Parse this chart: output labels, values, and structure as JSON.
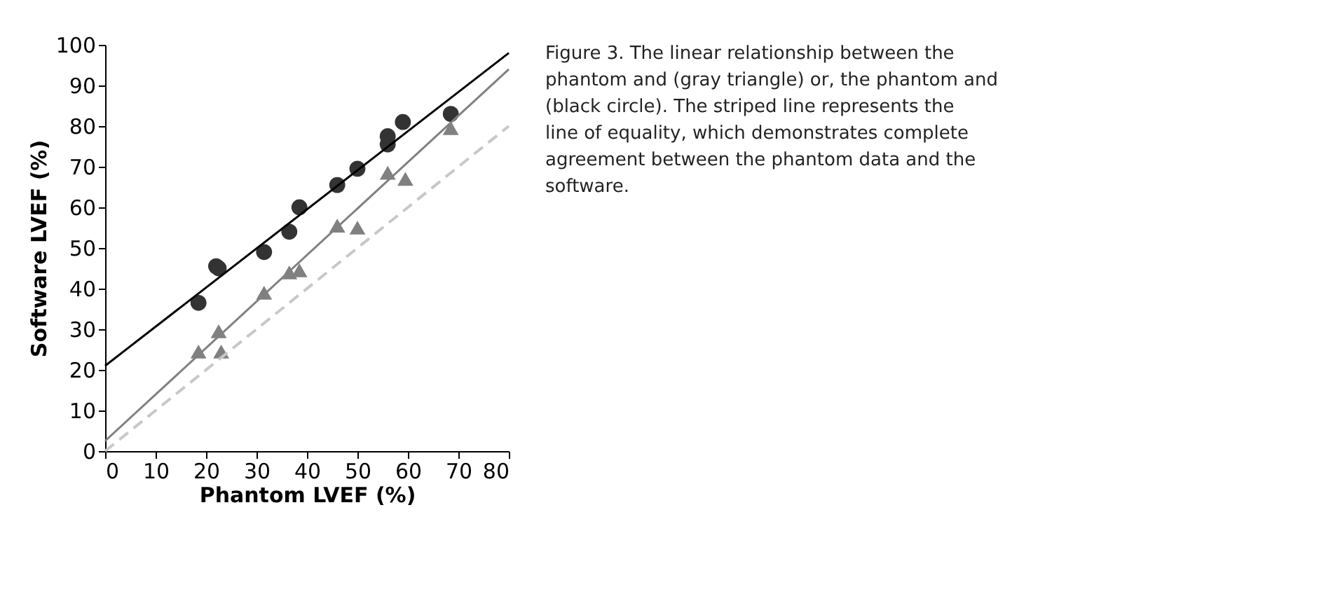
{
  "chart_data": {
    "type": "scatter",
    "xlabel": "Phantom LVEF (%)",
    "ylabel": "Software LVEF (%)",
    "xlim": [
      0,
      80
    ],
    "xticks": [
      0,
      10,
      20,
      30,
      40,
      50,
      60,
      70,
      80
    ],
    "ylim": [
      0,
      100
    ],
    "yticks": [
      0,
      10,
      20,
      30,
      40,
      50,
      60,
      70,
      80,
      90,
      100
    ],
    "grid": false,
    "series": [
      {
        "marker": "circle",
        "color": "#333333",
        "x": [
          18.5,
          22,
          22.5,
          31.5,
          36.5,
          38.5,
          46,
          50,
          56,
          56,
          59,
          68.5
        ],
        "values": [
          36.5,
          45.5,
          45,
          49,
          54,
          60,
          65.5,
          69.5,
          75.5,
          77.5,
          81,
          83
        ]
      },
      {
        "marker": "triangle",
        "color": "#808080",
        "x": [
          18.5,
          22.5,
          23,
          31.5,
          36.5,
          38.5,
          46,
          50,
          56,
          59.5,
          68.5
        ],
        "values": [
          24.5,
          29.5,
          24.5,
          39,
          44,
          44.5,
          55.5,
          55,
          68.5,
          67,
          79.5
        ]
      },
      {
        "type": "line",
        "line_style": "solid",
        "color": "#000000",
        "x": [
          0,
          80
        ],
        "values": [
          21,
          98
        ]
      },
      {
        "type": "line",
        "line_style": "solid",
        "color": "#808080",
        "x": [
          0,
          80
        ],
        "values": [
          2.5,
          94
        ]
      },
      {
        "type": "line",
        "line_style": "dashed",
        "color": "#c8c8c8",
        "x": [
          0,
          80
        ],
        "values": [
          0,
          80
        ]
      }
    ],
    "annotations": [
      "Figure 3. The linear relationship between the phantom and (gray triangle) or, the phantom and (black circle). The striped line represents the line of equality, which demonstrates complete agreement between the phantom data and the software."
    ]
  }
}
